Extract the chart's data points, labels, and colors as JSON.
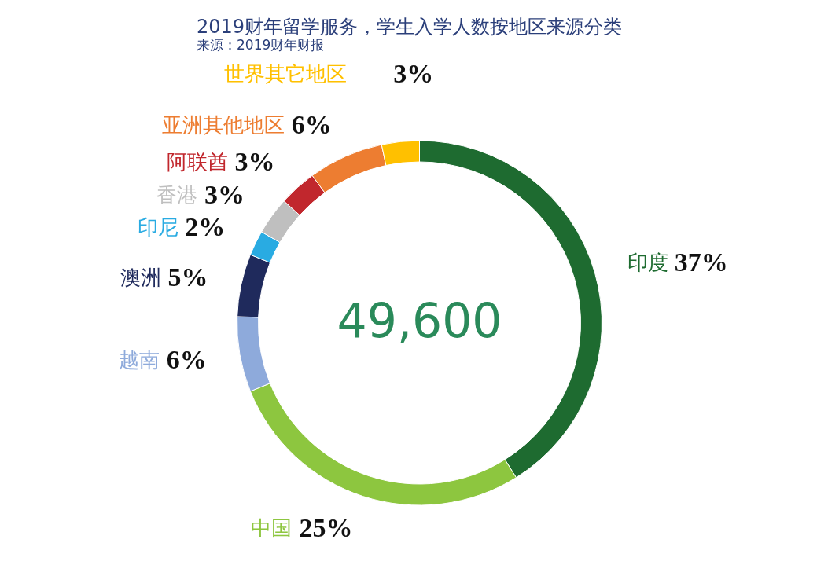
{
  "chart_data": {
    "type": "donut",
    "title": "2019财年留学服务，学生入学人数按地区来源分类",
    "categories": [
      "印度",
      "中国",
      "越南",
      "澳洲",
      "印尼",
      "香港",
      "阿联酋",
      "亚洲其他地区",
      "世界其它地区"
    ],
    "values": [
      37,
      25,
      6,
      5,
      2,
      3,
      3,
      6,
      3
    ],
    "value_labels": [
      "37%",
      "25%",
      "6%",
      "5%",
      "2%",
      "3%",
      "3%",
      "6%",
      "3%"
    ],
    "colors": [
      "#1e6b30",
      "#8dc63f",
      "#8eaadb",
      "#1f2a5c",
      "#29abe2",
      "#bfbfbf",
      "#c1272d",
      "#ed7d31",
      "#ffc000"
    ],
    "annotations": [
      "49,600",
      "来源：2019财年财报"
    ]
  }
}
